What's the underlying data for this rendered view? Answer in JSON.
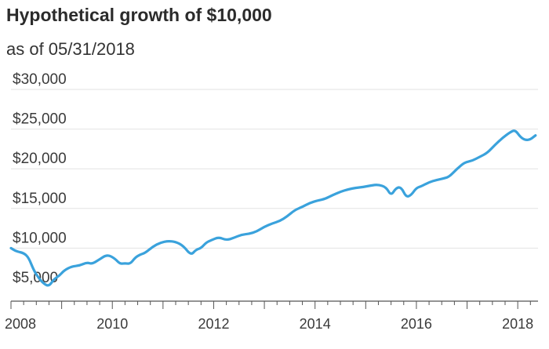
{
  "header": {
    "title": "Hypothetical growth of $10,000",
    "subtitle": "as of 05/31/2018"
  },
  "chart_data": {
    "type": "line",
    "title": "Hypothetical growth of $10,000",
    "subtitle": "as of 05/31/2018",
    "xlabel": "",
    "ylabel": "",
    "xlim": [
      2008.0,
      2018.4
    ],
    "ylim": [
      4500,
      30000
    ],
    "y_ticks": [
      5000,
      10000,
      15000,
      20000,
      25000,
      30000
    ],
    "y_tick_labels": [
      "$5,000",
      "$10,000",
      "$15,000",
      "$20,000",
      "$25,000",
      "$30,000"
    ],
    "x_ticks": [
      2008,
      2010,
      2012,
      2014,
      2016,
      2018
    ],
    "x_tick_labels": [
      "2008",
      "2010",
      "2012",
      "2014",
      "2016",
      "2018"
    ],
    "grid": "horizontal",
    "line_color": "#3aa2dc",
    "series": [
      {
        "x": [
          2008.0,
          2008.1,
          2008.25,
          2008.35,
          2008.45,
          2008.55,
          2008.65,
          2008.75,
          2008.85,
          2008.95,
          2009.05,
          2009.2,
          2009.35,
          2009.5,
          2009.6,
          2009.75,
          2009.9,
          2010.05,
          2010.15,
          2010.25,
          2010.35,
          2010.45,
          2010.55,
          2010.65,
          2010.8,
          2010.95,
          2011.1,
          2011.25,
          2011.4,
          2011.55,
          2011.65,
          2011.75,
          2011.85,
          2011.95,
          2012.1,
          2012.25,
          2012.4,
          2012.55,
          2012.7,
          2012.85,
          2013.0,
          2013.15,
          2013.3,
          2013.45,
          2013.6,
          2013.75,
          2013.9,
          2014.05,
          2014.2,
          2014.35,
          2014.5,
          2014.65,
          2014.8,
          2014.95,
          2015.1,
          2015.25,
          2015.4,
          2015.5,
          2015.6,
          2015.7,
          2015.8,
          2015.9,
          2016.0,
          2016.1,
          2016.25,
          2016.4,
          2016.55,
          2016.65,
          2016.8,
          2016.95,
          2017.1,
          2017.25,
          2017.4,
          2017.55,
          2017.7,
          2017.85,
          2017.95,
          2018.05,
          2018.15,
          2018.25,
          2018.35
        ],
        "values": [
          10000,
          9600,
          9400,
          8800,
          7200,
          6200,
          5500,
          5200,
          6100,
          6500,
          7200,
          7700,
          7800,
          8200,
          8000,
          8600,
          9200,
          8700,
          8000,
          8100,
          8000,
          8800,
          9200,
          9400,
          10200,
          10700,
          10900,
          10800,
          10300,
          9100,
          9800,
          10000,
          10700,
          11000,
          11400,
          11000,
          11300,
          11700,
          11800,
          12100,
          12700,
          13100,
          13400,
          14000,
          14800,
          15200,
          15700,
          16000,
          16200,
          16700,
          17100,
          17400,
          17600,
          17700,
          17900,
          18000,
          17700,
          16600,
          17600,
          17700,
          16400,
          16700,
          17600,
          17800,
          18300,
          18600,
          18800,
          19000,
          20000,
          20800,
          21000,
          21500,
          22000,
          23000,
          23900,
          24600,
          24900,
          24000,
          23600,
          23700,
          24200
        ]
      }
    ]
  }
}
